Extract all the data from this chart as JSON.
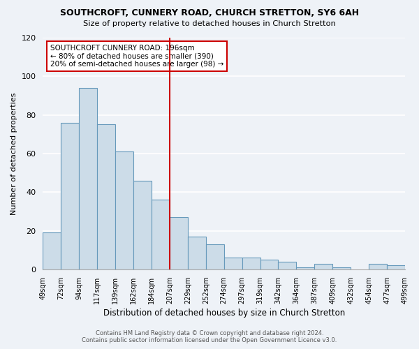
{
  "title1": "SOUTHCROFT, CUNNERY ROAD, CHURCH STRETTON, SY6 6AH",
  "title2": "Size of property relative to detached houses in Church Stretton",
  "xlabel": "Distribution of detached houses by size in Church Stretton",
  "ylabel": "Number of detached properties",
  "bar_color": "#ccdce8",
  "bar_edge_color": "#6699bb",
  "bin_labels": [
    "49sqm",
    "72sqm",
    "94sqm",
    "117sqm",
    "139sqm",
    "162sqm",
    "184sqm",
    "207sqm",
    "229sqm",
    "252sqm",
    "274sqm",
    "297sqm",
    "319sqm",
    "342sqm",
    "364sqm",
    "387sqm",
    "409sqm",
    "432sqm",
    "454sqm",
    "477sqm",
    "499sqm"
  ],
  "bar_heights": [
    19,
    76,
    94,
    75,
    61,
    46,
    36,
    27,
    17,
    13,
    6,
    6,
    5,
    4,
    1,
    3,
    1,
    0,
    3,
    2
  ],
  "vline_label_idx": 7,
  "vline_color": "#cc0000",
  "ylim": [
    0,
    120
  ],
  "yticks": [
    0,
    20,
    40,
    60,
    80,
    100,
    120
  ],
  "annotation_title": "SOUTHCROFT CUNNERY ROAD: 196sqm",
  "annotation_line1": "← 80% of detached houses are smaller (390)",
  "annotation_line2": "20% of semi-detached houses are larger (98) →",
  "footer1": "Contains HM Land Registry data © Crown copyright and database right 2024.",
  "footer2": "Contains public sector information licensed under the Open Government Licence v3.0.",
  "bg_color": "#eef2f7",
  "plot_bg_color": "#eef2f7",
  "grid_color": "#ffffff",
  "annotation_box_edge": "#cc0000",
  "annotation_box_face": "#ffffff"
}
